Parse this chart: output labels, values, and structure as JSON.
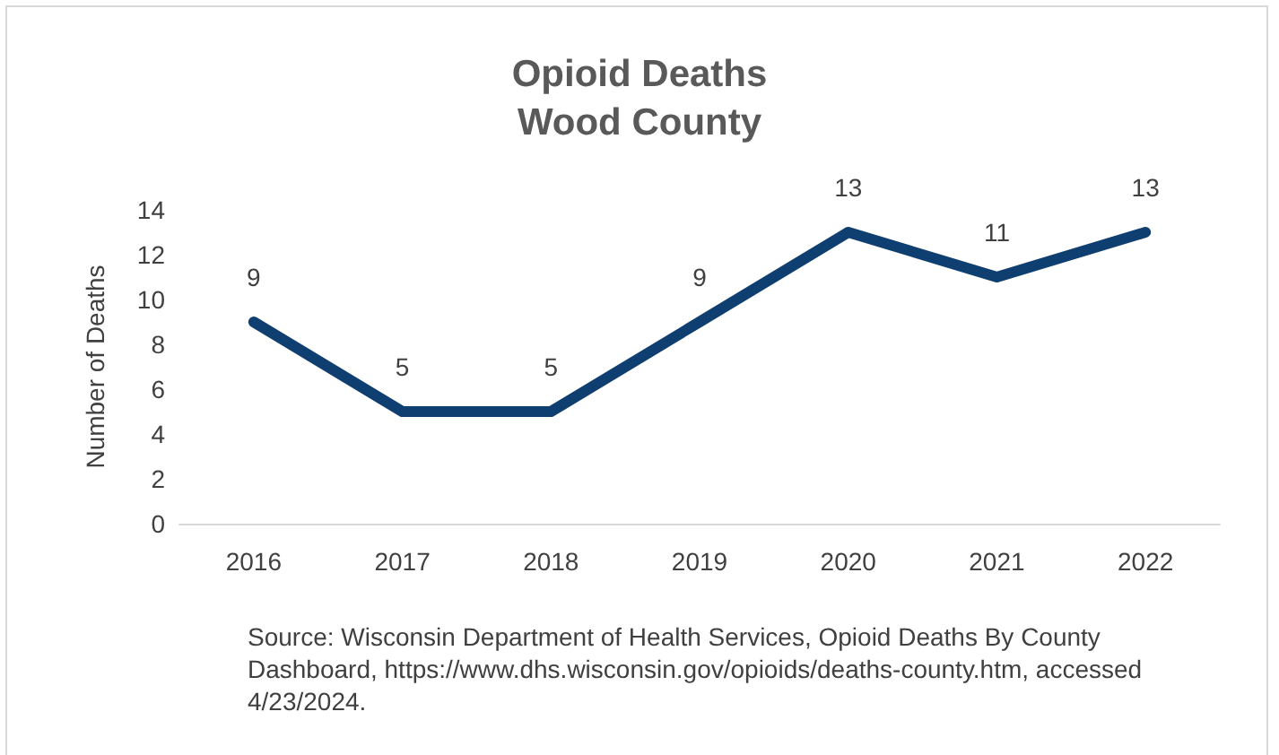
{
  "chart_data": {
    "type": "line",
    "title": "Opioid Deaths",
    "subtitle": "Wood County",
    "ylabel": "Number of Deaths",
    "categories": [
      "2016",
      "2017",
      "2018",
      "2019",
      "2020",
      "2021",
      "2022"
    ],
    "series": [
      {
        "color": "#0e3f70",
        "values": [
          9,
          5,
          5,
          9,
          13,
          11,
          13
        ]
      }
    ],
    "ylim": [
      0,
      14
    ],
    "yticks": [
      0,
      2,
      4,
      6,
      8,
      10,
      12,
      14
    ],
    "grid": false,
    "marker": "none",
    "line_style": "solid",
    "data_labels": true,
    "annotations": [
      "Source: Wisconsin Department of Health Services, Opioid Deaths By County Dashboard, https://www.dhs.wisconsin.gov/opioids/deaths-county.htm, accessed 4/23/2024."
    ]
  }
}
